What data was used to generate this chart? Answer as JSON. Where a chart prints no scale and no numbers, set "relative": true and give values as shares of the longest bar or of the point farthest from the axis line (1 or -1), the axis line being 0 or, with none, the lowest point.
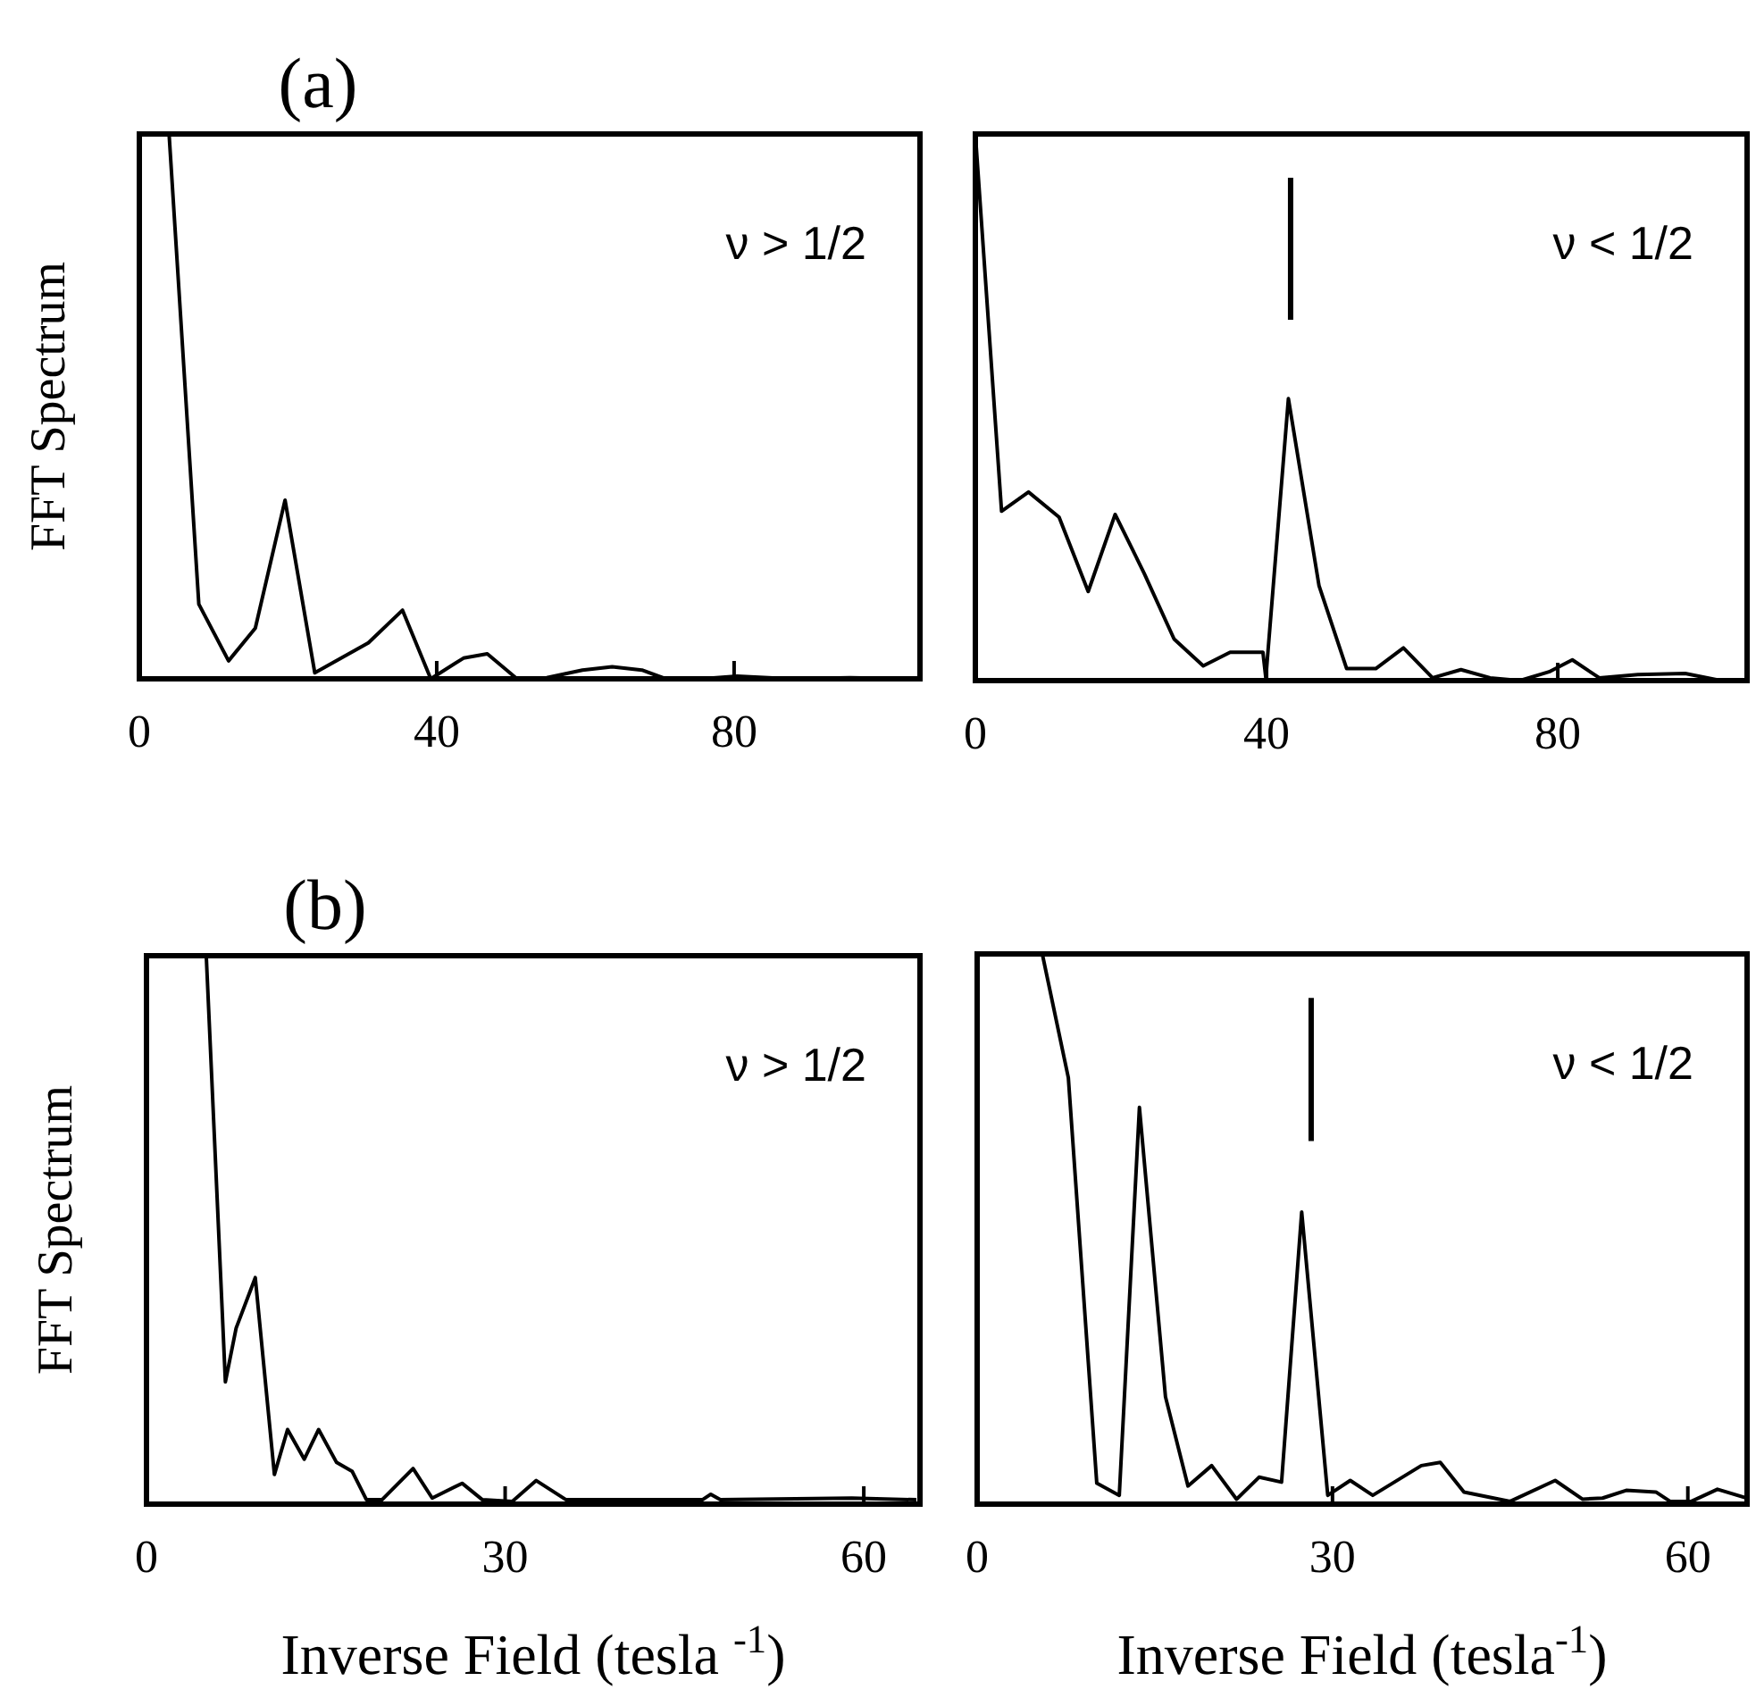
{
  "chart_data": [
    {
      "type": "line",
      "title": "(a)",
      "ylabel": "FFT Spectrum",
      "relative": true,
      "xlim": [
        0,
        105
      ],
      "xticks": [
        0,
        40,
        80
      ],
      "annotations": [
        "ν > 1/2"
      ],
      "series": [
        {
          "color": "#000000",
          "x": [
            4,
            8,
            12,
            15.6,
            19.6,
            23.6,
            30.8,
            35.4,
            39.2,
            43.6,
            46.8,
            50.8,
            54.8,
            59.6,
            63.6,
            67.6,
            70.8,
            75.6,
            80.4,
            87.6,
            95.6,
            104.4
          ],
          "values": [
            1,
            0.137,
            0.033,
            0.093,
            0.328,
            0.011,
            0.066,
            0.126,
            0,
            0.038,
            0.046,
            0,
            0.002,
            0.016,
            0.022,
            0.016,
            0,
            0,
            0.005,
            0,
            0.002,
            0
          ]
        }
      ]
    },
    {
      "type": "line",
      "relative": true,
      "xlim": [
        0,
        106
      ],
      "xticks": [
        0,
        40,
        80
      ],
      "annotations": [
        "ν < 1/2"
      ],
      "ref_lines": [
        {
          "axis": "x",
          "value": 43.3
        }
      ],
      "series": [
        {
          "color": "#000000",
          "x": [
            0,
            3.6,
            7.3,
            11.5,
            15.5,
            19.2,
            23.2,
            27.3,
            31.3,
            35,
            39.5,
            39.9,
            43,
            47.2,
            51,
            55,
            58.8,
            62.8,
            66.7,
            70.7,
            74.8,
            78.8,
            82,
            85.7,
            91,
            97.5,
            102.4
          ],
          "values": [
            1,
            0.31,
            0.345,
            0.299,
            0.163,
            0.304,
            0.196,
            0.076,
            0.027,
            0.052,
            0.052,
            0.005,
            0.516,
            0.174,
            0.022,
            0.022,
            0.06,
            0.005,
            0.02,
            0.005,
            0,
            0.016,
            0.038,
            0.005,
            0.011,
            0.013,
            0
          ]
        }
      ]
    },
    {
      "type": "line",
      "title": "(b)",
      "ylabel": "FFT Spectrum",
      "xlabel": "Inverse Field (tesla $^{-1}$)",
      "relative": true,
      "xlim": [
        0,
        64.7
      ],
      "xticks": [
        0,
        30,
        60
      ],
      "annotations": [
        "ν > 1/2"
      ],
      "series": [
        {
          "color": "#000000",
          "x": [
            5,
            6.6,
            7.5,
            9.1,
            10.7,
            11.8,
            13.2,
            14.4,
            15.9,
            17.2,
            18.4,
            19.7,
            22.3,
            23.9,
            26.4,
            28.1,
            30.6,
            32.6,
            35.1,
            46.5,
            47.2,
            48,
            59,
            64.4
          ],
          "values": [
            1,
            0.223,
            0.321,
            0.413,
            0.054,
            0.136,
            0.082,
            0.136,
            0.076,
            0.06,
            0.008,
            0.008,
            0.065,
            0.011,
            0.038,
            0.008,
            0.005,
            0.043,
            0.008,
            0.008,
            0.018,
            0.008,
            0.011,
            0.008
          ]
        }
      ]
    },
    {
      "type": "line",
      "xlabel": "Inverse Field (tesla$^{-1}$)",
      "relative": true,
      "xlim": [
        0,
        65
      ],
      "xticks": [
        0,
        30,
        60
      ],
      "annotations": [
        "ν < 1/2"
      ],
      "ref_lines": [
        {
          "axis": "x",
          "value": 28.2
        }
      ],
      "series": [
        {
          "color": "#000000",
          "x": [
            5.5,
            7.7,
            10.1,
            12,
            13.7,
            15.9,
            17.8,
            19.8,
            21.9,
            23.8,
            25.7,
            27.4,
            29.6,
            31.5,
            33.4,
            37.5,
            39.1,
            41.1,
            45,
            48.8,
            51.1,
            52.8,
            54.8,
            57.3,
            58.5,
            60.3,
            62.5,
            65
          ],
          "values": [
            1,
            0.775,
            0.038,
            0.016,
            0.721,
            0.195,
            0.033,
            0.07,
            0.009,
            0.049,
            0.04,
            0.531,
            0.016,
            0.043,
            0.016,
            0.07,
            0.076,
            0.022,
            0.005,
            0.043,
            0.009,
            0.011,
            0.025,
            0.022,
            0.005,
            0.005,
            0.027,
            0.011
          ]
        }
      ]
    }
  ]
}
